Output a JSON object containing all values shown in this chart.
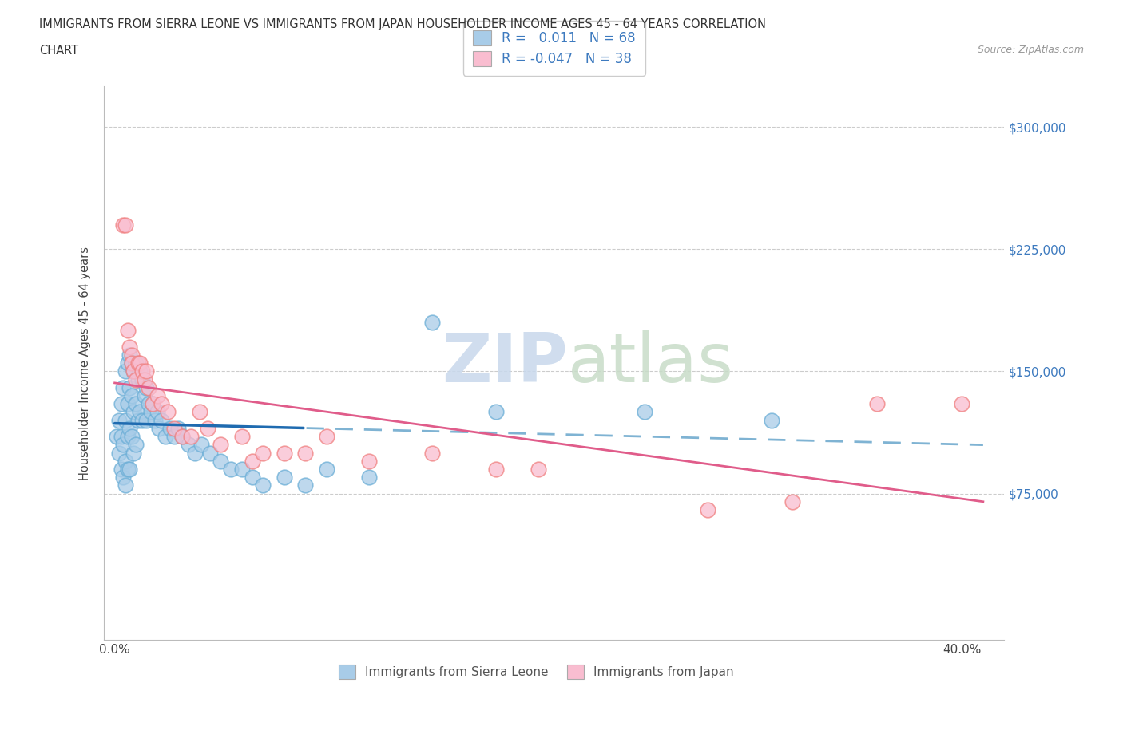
{
  "title_line1": "IMMIGRANTS FROM SIERRA LEONE VS IMMIGRANTS FROM JAPAN HOUSEHOLDER INCOME AGES 45 - 64 YEARS CORRELATION",
  "title_line2": "CHART",
  "source_text": "Source: ZipAtlas.com",
  "ylabel": "Householder Income Ages 45 - 64 years",
  "xlim": [
    -0.005,
    0.42
  ],
  "ylim": [
    -15000,
    325000
  ],
  "xtick_positions": [
    0.0,
    0.05,
    0.1,
    0.15,
    0.2,
    0.25,
    0.3,
    0.35,
    0.4
  ],
  "xticklabels": [
    "0.0%",
    "",
    "",
    "",
    "",
    "",
    "",
    "",
    "40.0%"
  ],
  "ytick_positions": [
    0,
    75000,
    150000,
    225000,
    300000
  ],
  "yticklabels_right": [
    "",
    "$75,000",
    "$150,000",
    "$225,000",
    "$300,000"
  ],
  "watermark_zip": "ZIP",
  "watermark_atlas": "atlas",
  "legend_blue_label": "R =   0.011   N = 68",
  "legend_pink_label": "R = -0.047   N = 38",
  "legend_bottom_blue": "Immigrants from Sierra Leone",
  "legend_bottom_pink": "Immigrants from Japan",
  "blue_color": "#a8cce8",
  "blue_edge_color": "#6baed6",
  "pink_color": "#f9bdd0",
  "pink_edge_color": "#f08080",
  "blue_line_color": "#1f6bb0",
  "blue_line_dash_color": "#7fb3d3",
  "pink_line_color": "#e05c8a",
  "grid_color": "#cccccc",
  "blue_x": [
    0.001,
    0.002,
    0.002,
    0.003,
    0.003,
    0.003,
    0.004,
    0.004,
    0.004,
    0.005,
    0.005,
    0.005,
    0.005,
    0.006,
    0.006,
    0.006,
    0.006,
    0.007,
    0.007,
    0.007,
    0.007,
    0.008,
    0.008,
    0.008,
    0.009,
    0.009,
    0.009,
    0.01,
    0.01,
    0.01,
    0.011,
    0.011,
    0.012,
    0.012,
    0.013,
    0.013,
    0.014,
    0.015,
    0.015,
    0.016,
    0.017,
    0.018,
    0.019,
    0.02,
    0.021,
    0.022,
    0.024,
    0.026,
    0.028,
    0.03,
    0.032,
    0.035,
    0.038,
    0.041,
    0.045,
    0.05,
    0.055,
    0.06,
    0.065,
    0.07,
    0.08,
    0.09,
    0.1,
    0.12,
    0.15,
    0.18,
    0.25,
    0.31
  ],
  "blue_y": [
    110000,
    120000,
    100000,
    130000,
    110000,
    90000,
    140000,
    105000,
    85000,
    150000,
    120000,
    95000,
    80000,
    155000,
    130000,
    110000,
    90000,
    160000,
    140000,
    115000,
    90000,
    155000,
    135000,
    110000,
    150000,
    125000,
    100000,
    155000,
    130000,
    105000,
    145000,
    120000,
    150000,
    125000,
    145000,
    120000,
    135000,
    140000,
    120000,
    130000,
    125000,
    130000,
    120000,
    125000,
    115000,
    120000,
    110000,
    115000,
    110000,
    115000,
    110000,
    105000,
    100000,
    105000,
    100000,
    95000,
    90000,
    90000,
    85000,
    80000,
    85000,
    80000,
    90000,
    85000,
    180000,
    125000,
    125000,
    120000
  ],
  "pink_x": [
    0.004,
    0.005,
    0.006,
    0.007,
    0.008,
    0.008,
    0.009,
    0.01,
    0.011,
    0.012,
    0.013,
    0.014,
    0.015,
    0.016,
    0.018,
    0.02,
    0.022,
    0.025,
    0.028,
    0.032,
    0.036,
    0.04,
    0.044,
    0.05,
    0.06,
    0.065,
    0.07,
    0.08,
    0.09,
    0.1,
    0.12,
    0.15,
    0.18,
    0.2,
    0.28,
    0.32,
    0.36,
    0.4
  ],
  "pink_y": [
    240000,
    240000,
    175000,
    165000,
    160000,
    155000,
    150000,
    145000,
    155000,
    155000,
    150000,
    145000,
    150000,
    140000,
    130000,
    135000,
    130000,
    125000,
    115000,
    110000,
    110000,
    125000,
    115000,
    105000,
    110000,
    95000,
    100000,
    100000,
    100000,
    110000,
    95000,
    100000,
    90000,
    90000,
    65000,
    70000,
    130000,
    130000
  ]
}
